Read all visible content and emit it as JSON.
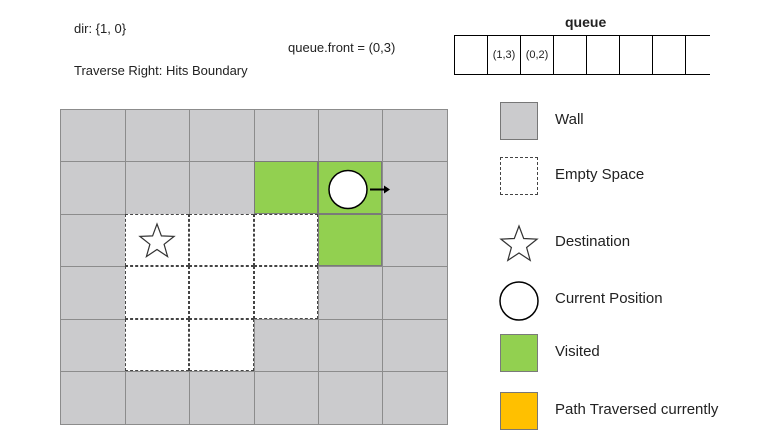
{
  "header": {
    "dir_text": "dir: {1, 0}",
    "queue_front_text": "queue.front = (0,3)",
    "traverse_text": "Traverse Right: Hits Boundary"
  },
  "queue": {
    "title": "queue",
    "slots": [
      "",
      "(1,3)",
      "(0,2)",
      "",
      "",
      "",
      "",
      ""
    ]
  },
  "grid": {
    "rows": 6,
    "cols": 6,
    "cells": [
      [
        "wall",
        "wall",
        "wall",
        "wall",
        "wall",
        "wall"
      ],
      [
        "wall",
        "wall",
        "wall",
        "visited",
        "visited",
        "wall"
      ],
      [
        "wall",
        "empty",
        "empty",
        "empty",
        "visited",
        "wall"
      ],
      [
        "wall",
        "empty",
        "empty",
        "empty",
        "wall",
        "wall"
      ],
      [
        "wall",
        "empty",
        "empty",
        "wall",
        "wall",
        "wall"
      ],
      [
        "wall",
        "wall",
        "wall",
        "wall",
        "wall",
        "wall"
      ]
    ],
    "destination": {
      "row": 2,
      "col": 1
    },
    "current": {
      "row": 1,
      "col": 4
    },
    "direction": "right"
  },
  "legend": [
    {
      "label": "Wall",
      "kind": "wall",
      "color": "#cbcbcd"
    },
    {
      "label": "Empty Space",
      "kind": "empty",
      "color": "#ffffff"
    },
    {
      "label": "Destination",
      "kind": "star",
      "color": "#ffffff"
    },
    {
      "label": "Current Position",
      "kind": "circle",
      "color": "#ffffff"
    },
    {
      "label": "Visited",
      "kind": "visited",
      "color": "#92d050"
    },
    {
      "label": "Path Traversed currently",
      "kind": "path",
      "color": "#ffc000"
    }
  ]
}
